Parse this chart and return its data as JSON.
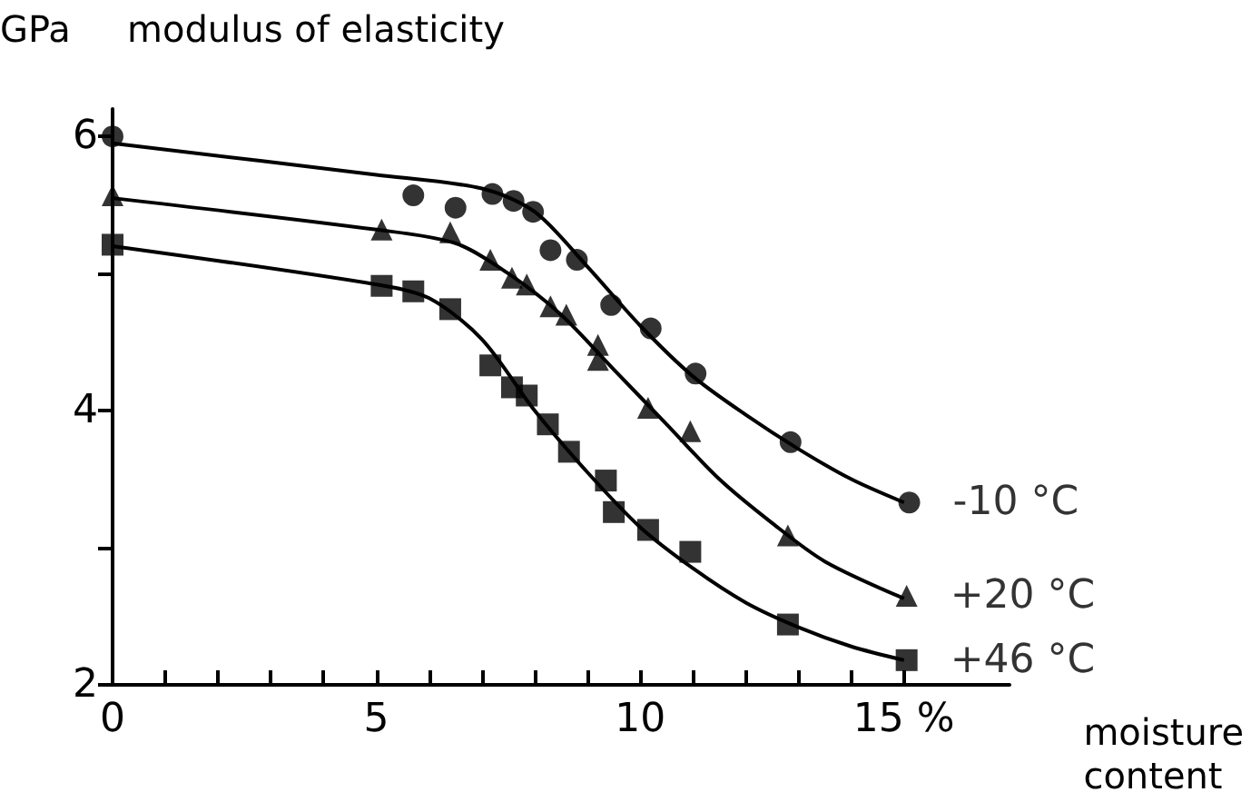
{
  "chart_data": {
    "type": "scatter",
    "title": "modulus of elasticity",
    "ylabel": "GPa",
    "xlabel": "moisture content",
    "xlim": [
      0,
      17
    ],
    "xticks": [
      0,
      {
        "value": 1,
        "label": null
      },
      {
        "value": 2,
        "label": null
      },
      {
        "value": 3,
        "label": null
      },
      {
        "value": 4,
        "label": null
      },
      5,
      {
        "value": 6,
        "label": null
      },
      {
        "value": 7,
        "label": null
      },
      {
        "value": 8,
        "label": null
      },
      {
        "value": 9,
        "label": null
      },
      10,
      {
        "value": 11,
        "label": null
      },
      {
        "value": 12,
        "label": null
      },
      {
        "value": 13,
        "label": null
      },
      {
        "value": 14,
        "label": null
      },
      {
        "value": 15,
        "label": "15 %"
      }
    ],
    "ylim": [
      2,
      6.2
    ],
    "yticks": [
      2,
      {
        "value": 3,
        "label": null
      },
      4,
      {
        "value": 5,
        "label": null
      },
      6
    ],
    "grid": false,
    "legend": false,
    "series": [
      {
        "name": "-10 °C",
        "color": "#000000",
        "marker": "circle",
        "x": [
          0,
          5.7,
          6.5,
          7.2,
          7.6,
          7.97,
          8.3,
          8.8,
          9.45,
          10.2,
          11.05,
          12.85,
          15.1
        ],
        "values": [
          6.0,
          5.57,
          5.48,
          5.58,
          5.53,
          5.45,
          5.17,
          5.1,
          4.77,
          4.6,
          4.27,
          3.77,
          3.33
        ]
      },
      {
        "name": "+20 °C",
        "color": "#000000",
        "marker": "triangle",
        "x": [
          0,
          5.1,
          6.4,
          7.16,
          7.57,
          7.85,
          8.3,
          8.6,
          9.2,
          9.2,
          10.15,
          10.95,
          12.8,
          15.05
        ],
        "values": [
          5.57,
          5.32,
          5.3,
          5.1,
          4.97,
          4.92,
          4.76,
          4.7,
          4.48,
          4.37,
          4.02,
          3.85,
          3.09,
          2.65
        ]
      },
      {
        "name": "+46 °C",
        "color": "#000000",
        "marker": "square",
        "x": [
          0,
          5.1,
          5.7,
          6.4,
          7.16,
          7.57,
          7.85,
          8.25,
          8.65,
          9.35,
          9.5,
          10.15,
          10.95,
          12.8,
          15.05
        ],
        "values": [
          5.21,
          4.91,
          4.87,
          4.74,
          4.33,
          4.17,
          4.11,
          3.9,
          3.7,
          3.49,
          3.26,
          3.13,
          2.97,
          2.44,
          2.18
        ]
      },
      {
        "type": "line",
        "color": "#000000",
        "marker": "none",
        "x": [
          0,
          5,
          7,
          8,
          9,
          10,
          11,
          12,
          13,
          14,
          15
        ],
        "values": [
          5.95,
          5.72,
          5.62,
          5.45,
          5.05,
          4.62,
          4.25,
          3.97,
          3.72,
          3.5,
          3.33
        ]
      },
      {
        "type": "line",
        "color": "#000000",
        "marker": "none",
        "x": [
          0,
          5,
          6.5,
          7.5,
          8.5,
          9.5,
          10.5,
          11.5,
          12.5,
          13.5,
          15
        ],
        "values": [
          5.55,
          5.32,
          5.22,
          5.0,
          4.7,
          4.3,
          3.9,
          3.5,
          3.18,
          2.9,
          2.63
        ]
      },
      {
        "type": "line",
        "color": "#000000",
        "marker": "none",
        "x": [
          0,
          5,
          6,
          7,
          8,
          9,
          10,
          11,
          12,
          13,
          14,
          15
        ],
        "values": [
          5.2,
          4.92,
          4.82,
          4.52,
          4.0,
          3.55,
          3.15,
          2.85,
          2.6,
          2.42,
          2.28,
          2.18
        ]
      }
    ]
  }
}
